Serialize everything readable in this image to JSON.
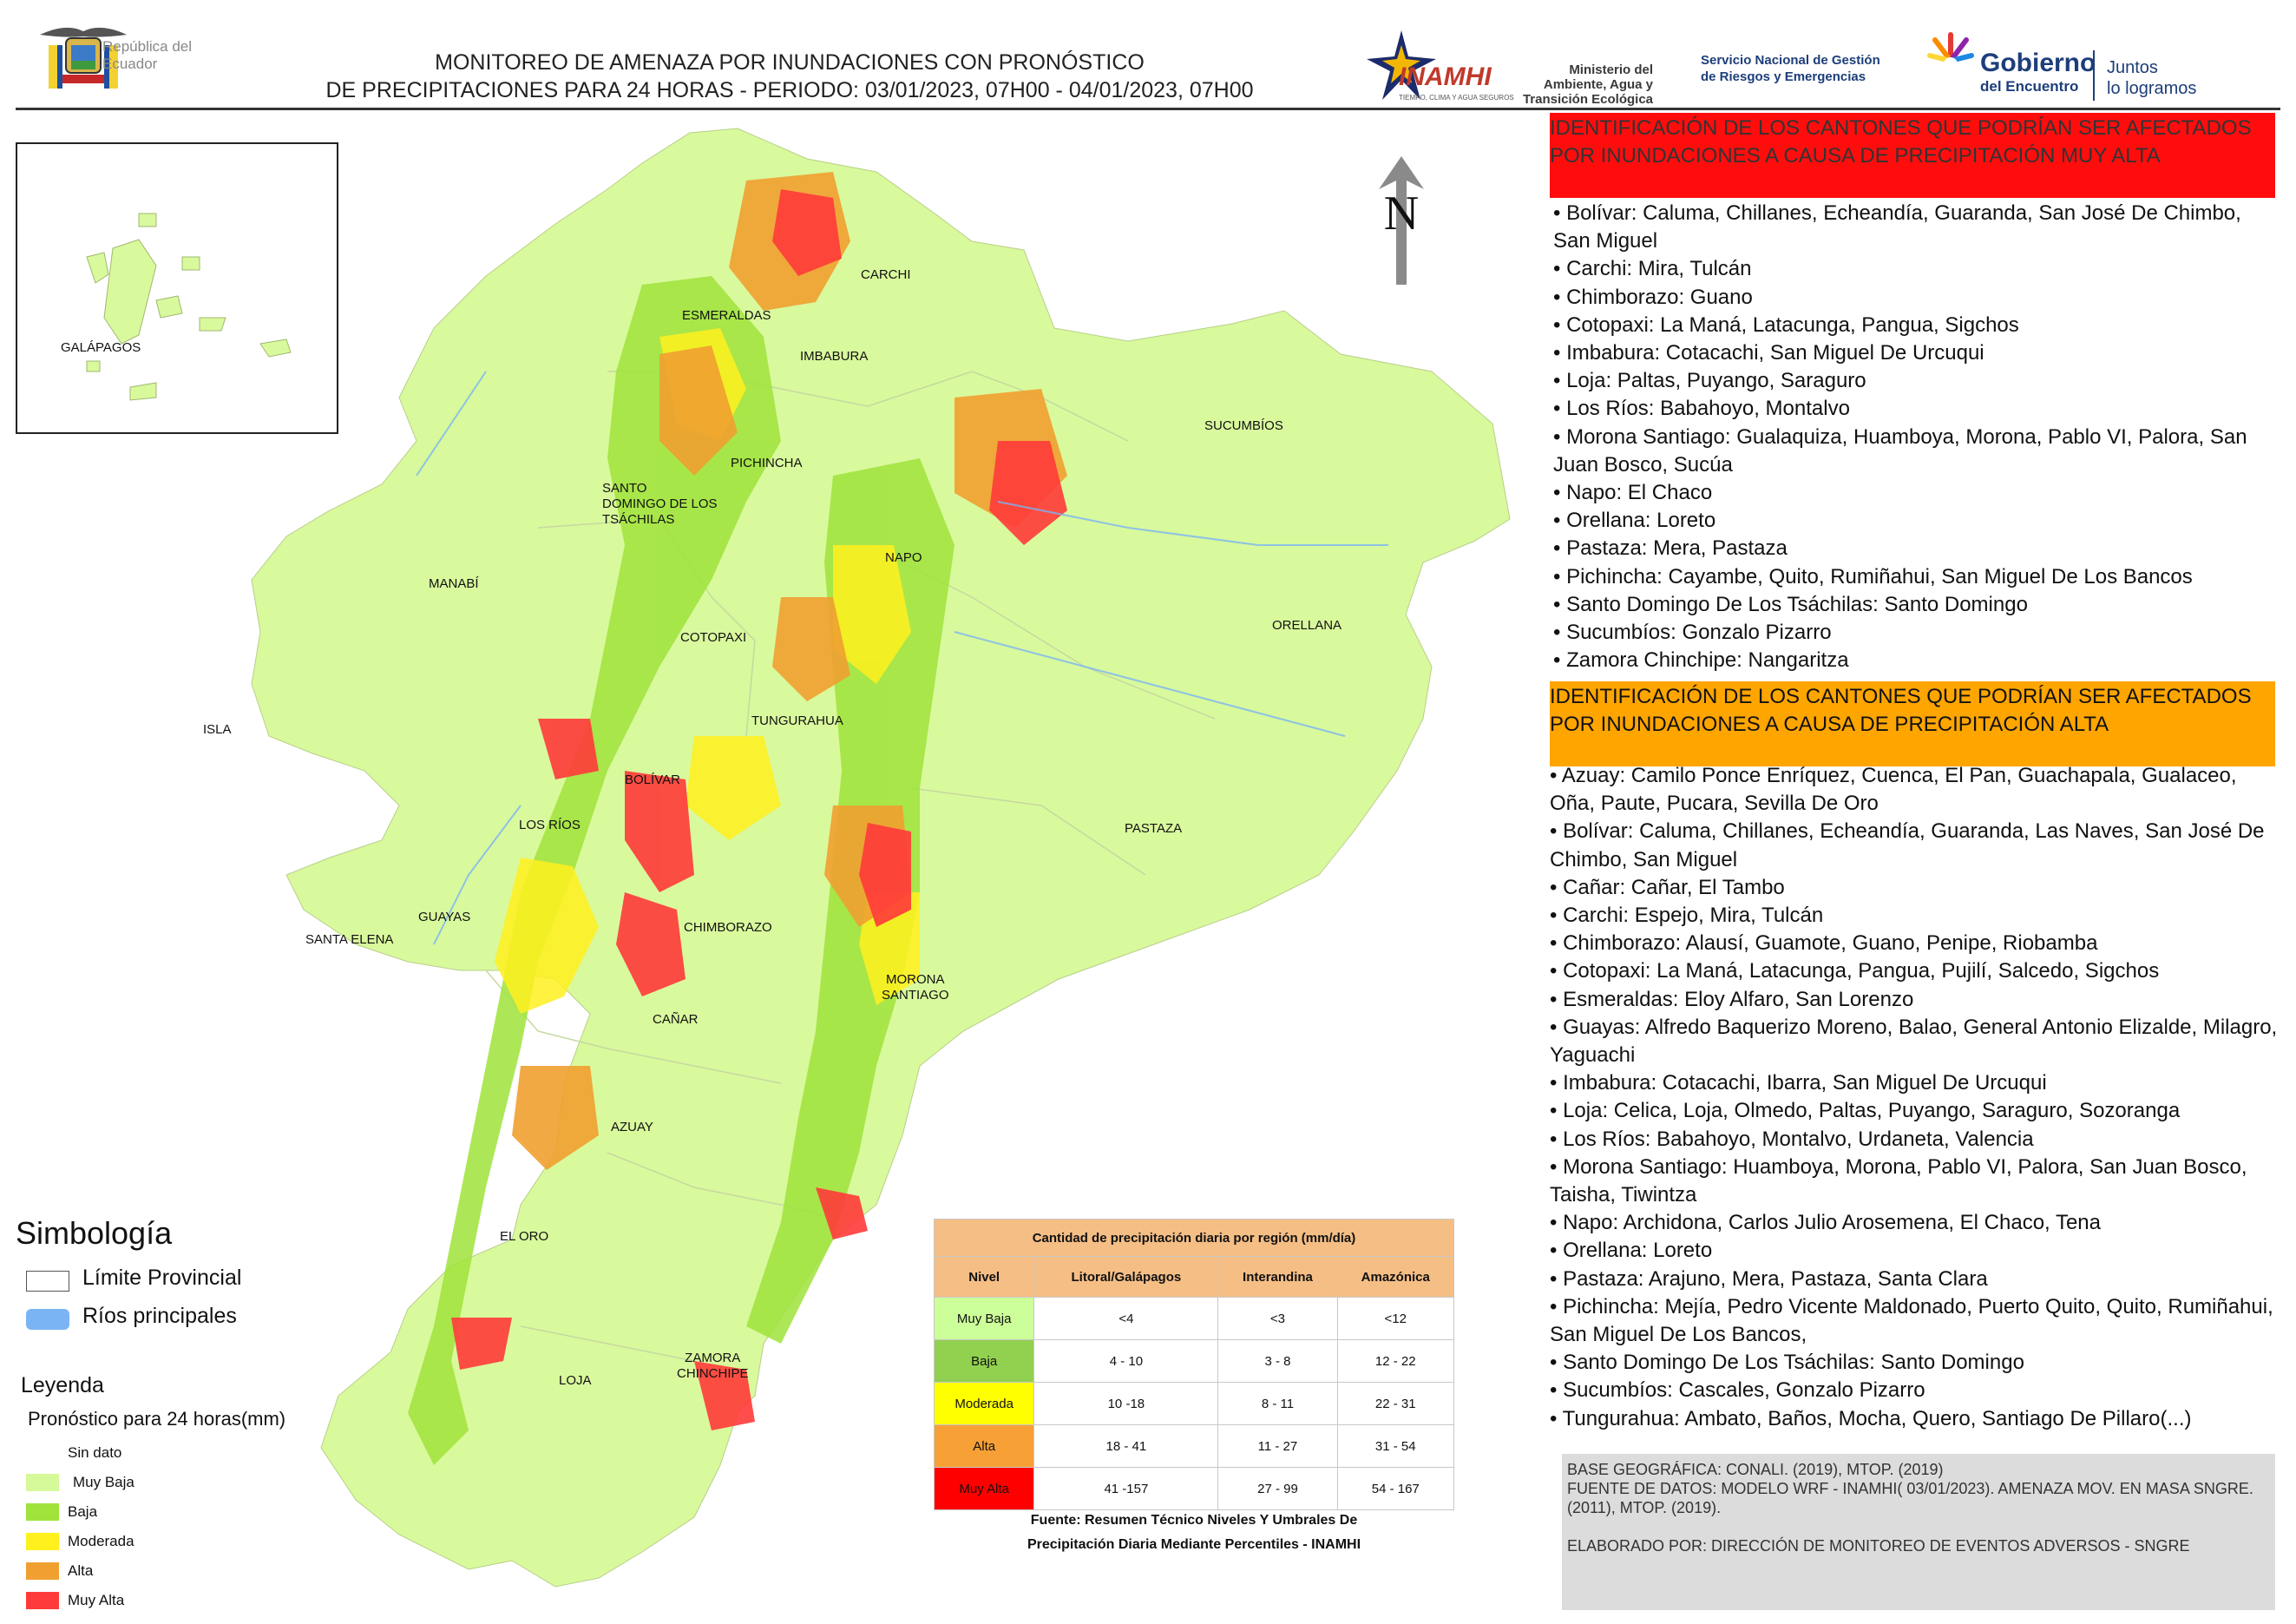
{
  "header": {
    "republic_text": "República del Ecuador",
    "title_line1": "MONITOREO DE AMENAZA POR INUNDACIONES  CON PRONÓSTICO",
    "title_line2": "DE  PRECIPITACIONES PARA 24 HORAS - PERIODO: 03/01/2023, 07H00 - 04/01/2023, 07H00",
    "inamhi": "INAMHI",
    "inamhi_sub": "TIEMPO, CLIMA Y AGUA SEGUROS",
    "ministerio_line1": "Ministerio del",
    "ministerio_line2": "Ambiente, Agua y",
    "ministerio_line3": "Transición Ecológica",
    "sngre_line1": "Servicio Nacional de Gestión",
    "sngre_line2": "de Riesgos y Emergencias",
    "gobierno": "Gobierno",
    "gobierno_sub": "del Encuentro",
    "juntos_line1": "Juntos",
    "juntos_line2": "lo logramos"
  },
  "map": {
    "north": "N",
    "labels": {
      "galapagos": "GALÁPAGOS",
      "carchi": "CARCHI",
      "esmeraldas": "ESMERALDAS",
      "imbabura": "IMBABURA",
      "sucumbios": "SUCUMBÍOS",
      "pichincha": "PICHINCHA",
      "santo_domingo_1": "SANTO",
      "santo_domingo_2": "DOMINGO DE LOS",
      "santo_domingo_3": "TSÁCHILAS",
      "manabi": "MANABÍ",
      "napo": "NAPO",
      "orellana": "ORELLANA",
      "cotopaxi": "COTOPAXI",
      "isla": "ISLA",
      "tungurahua": "TUNGURAHUA",
      "bolivar": "BOLÍVAR",
      "los_rios": "LOS RÍOS",
      "pastaza": "PASTAZA",
      "guayas": "GUAYAS",
      "santa_elena": "SANTA ELENA",
      "chimborazo": "CHIMBORAZO",
      "morona_1": "MORONA",
      "morona_2": "SANTIAGO",
      "canar": "CAÑAR",
      "azuay": "AZUAY",
      "el_oro": "EL ORO",
      "zamora_1": "ZAMORA",
      "zamora_2": "CHINCHIPE",
      "loja": "LOJA"
    }
  },
  "symbology": {
    "title": "Simbología",
    "limit": "Límite Provincial",
    "rivers": "Ríos principales",
    "rivers_color": "#7bb4f5",
    "legend_title": "Leyenda",
    "legend_sub": "Pronóstico para 24 horas(mm)",
    "items": [
      {
        "label": "Sin dato",
        "color": "#ffffff"
      },
      {
        "label": "Muy Baja",
        "color": "#d6f99a"
      },
      {
        "label": "Baja",
        "color": "#9fe33b"
      },
      {
        "label": "Moderada",
        "color": "#fff01e"
      },
      {
        "label": "Alta",
        "color": "#f0a030"
      },
      {
        "label": "Muy Alta",
        "color": "#ff3a3a"
      }
    ]
  },
  "table": {
    "title": "Cantidad de precipitación diaria por región (mm/día)",
    "headers": [
      "Nivel",
      "Litoral/Galápagos",
      "Interandina",
      "Amazónica"
    ],
    "rows": [
      {
        "nivel": "Muy Baja",
        "color": "#ccff99",
        "litoral": "<4",
        "interandina": "<3",
        "amazonica": "<12"
      },
      {
        "nivel": "Baja",
        "color": "#92d050",
        "litoral": "4 - 10",
        "interandina": "3 - 8",
        "amazonica": "12 - 22"
      },
      {
        "nivel": "Moderada",
        "color": "#ffff00",
        "litoral": "10 -18",
        "interandina": "8 - 11",
        "amazonica": "22 - 31"
      },
      {
        "nivel": "Alta",
        "color": "#f7a036",
        "litoral": "18 - 41",
        "interandina": "11 - 27",
        "amazonica": "31 - 54"
      },
      {
        "nivel": "Muy Alta",
        "color": "#ff0000",
        "litoral": "41 -157",
        "interandina": "27 - 99",
        "amazonica": "54 - 167"
      }
    ],
    "source_line1": "Fuente: Resumen Técnico Niveles Y Umbrales De",
    "source_line2": "Precipitación Diaria Mediante Percentiles - INAMHI"
  },
  "alerts": {
    "very_high_title": "IDENTIFICACIÓN DE LOS CANTONES QUE PODRÍAN SER AFECTADOS POR INUNDACIONES  A CAUSA DE PRECIPITACIÓN MUY ALTA",
    "very_high_items": [
      "• Bolívar: Caluma, Chillanes, Echeandía, Guaranda, San José De Chimbo, San Miguel",
      "• Carchi: Mira, Tulcán",
      "• Chimborazo: Guano",
      "• Cotopaxi: La Maná, Latacunga, Pangua, Sigchos",
      "• Imbabura: Cotacachi, San Miguel De Urcuqui",
      "• Loja: Paltas, Puyango, Saraguro",
      "• Los Ríos: Babahoyo, Montalvo",
      "• Morona Santiago: Gualaquiza, Huamboya, Morona, Pablo VI, Palora, San Juan Bosco, Sucúa",
      "• Napo: El Chaco",
      "• Orellana: Loreto",
      "• Pastaza: Mera, Pastaza",
      "• Pichincha: Cayambe, Quito, Rumiñahui, San Miguel De Los Bancos",
      "• Santo Domingo De Los Tsáchilas: Santo Domingo",
      "• Sucumbíos: Gonzalo Pizarro",
      "• Zamora Chinchipe: Nangaritza"
    ],
    "high_title": "IDENTIFICACIÓN DE LOS CANTONES QUE  PODRÍAN SER AFECTADOS POR INUNDACIONES  A CAUSA DE PRECIPITACIÓN ALTA",
    "high_items": [
      "• Azuay: Camilo Ponce Enríquez, Cuenca, El Pan, Guachapala, Gualaceo, Oña, Paute, Pucara, Sevilla De Oro",
      "• Bolívar: Caluma, Chillanes, Echeandía, Guaranda, Las Naves, San José De Chimbo, San Miguel",
      "• Cañar: Cañar, El Tambo",
      "• Carchi: Espejo, Mira, Tulcán",
      "• Chimborazo: Alausí, Guamote, Guano, Penipe, Riobamba",
      "• Cotopaxi: La Maná, Latacunga, Pangua, Pujilí, Salcedo, Sigchos",
      "• Esmeraldas: Eloy Alfaro, San Lorenzo",
      "• Guayas: Alfredo Baquerizo Moreno, Balao, General Antonio Elizalde, Milagro, Yaguachi",
      "• Imbabura: Cotacachi, Ibarra, San Miguel De Urcuqui",
      "• Loja: Celica, Loja, Olmedo, Paltas, Puyango, Saraguro, Sozoranga",
      "• Los Ríos: Babahoyo, Montalvo, Urdaneta, Valencia",
      "• Morona Santiago: Huamboya, Morona, Pablo VI, Palora, San Juan Bosco, Taisha, Tiwintza",
      "• Napo: Archidona, Carlos Julio Arosemena, El Chaco, Tena",
      "• Orellana: Loreto",
      "• Pastaza: Arajuno, Mera, Pastaza, Santa Clara",
      "• Pichincha: Mejía, Pedro Vicente Maldonado, Puerto Quito, Quito, Rumiñahui, San Miguel De Los Bancos,",
      "• Santo Domingo De Los Tsáchilas: Santo Domingo",
      "• Sucumbíos: Cascales, Gonzalo Pizarro",
      "• Tungurahua: Ambato, Baños, Mocha, Quero, Santiago De Pillaro(...)"
    ]
  },
  "footer": {
    "base": "BASE GEOGRÁFICA: CONALI. (2019), MTOP. (2019)",
    "fuente": "FUENTE DE DATOS: MODELO WRF - INAMHI( 03/01/2023).  AMENAZA MOV. EN MASA SNGRE. (2011), MTOP. (2019).",
    "elaborado": "ELABORADO POR: DIRECCIÓN DE MONITOREO DE EVENTOS ADVERSOS - SNGRE"
  }
}
